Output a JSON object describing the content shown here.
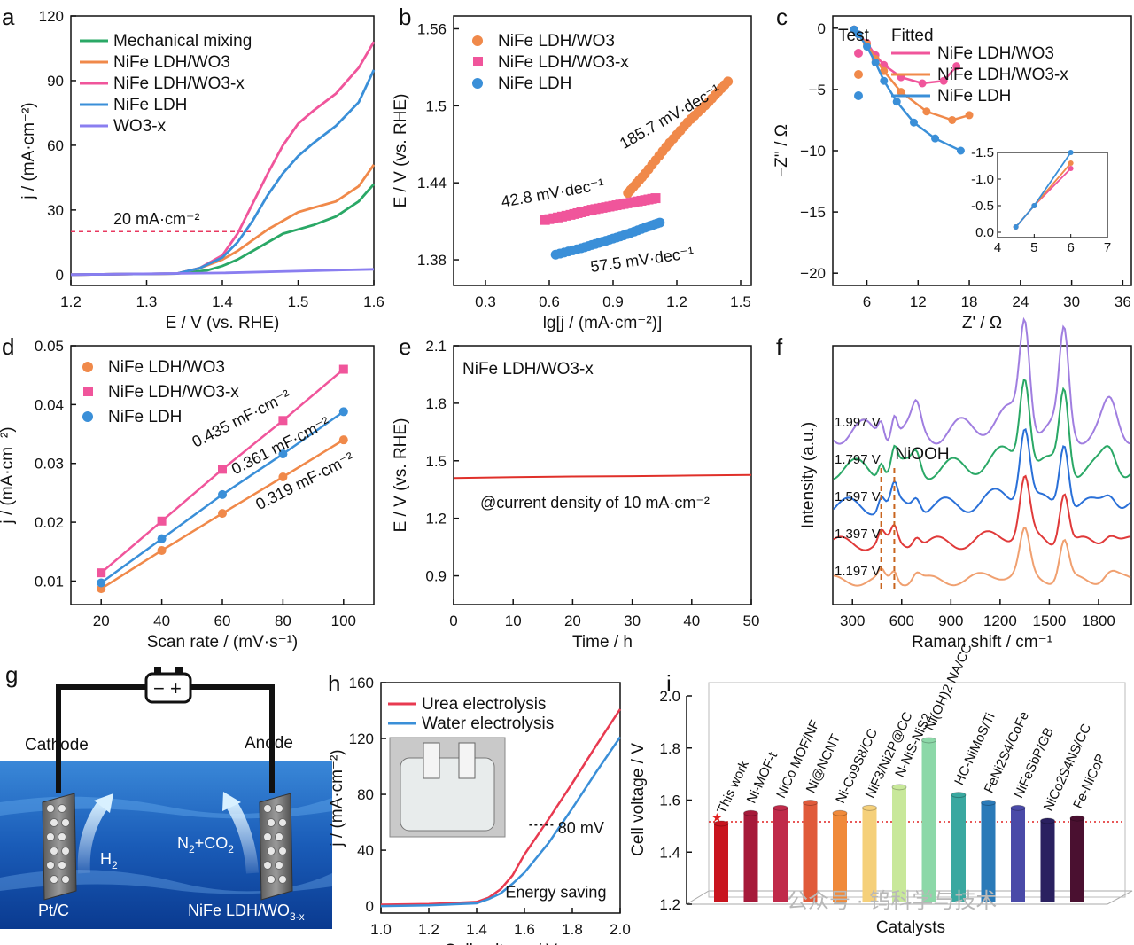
{
  "panels": [
    {
      "id": "a",
      "letter": "a",
      "chart_data": {
        "type": "line",
        "xlabel": "E / V (vs. RHE)",
        "ylabel": "j / (mA·cm⁻²)",
        "xlim": [
          1.2,
          1.6
        ],
        "ylim": [
          -5,
          120
        ],
        "xticks": [
          1.2,
          1.3,
          1.4,
          1.5,
          1.6
        ],
        "yticks": [
          0,
          30,
          60,
          90,
          120
        ],
        "legend_position": "top-left",
        "annotations": [
          {
            "text": "20 mA·cm⁻²",
            "y": 20
          }
        ],
        "series": [
          {
            "name": "Mechanical mixing",
            "color": "#2aa866",
            "x": [
              1.2,
              1.34,
              1.38,
              1.4,
              1.42,
              1.44,
              1.46,
              1.48,
              1.5,
              1.52,
              1.55,
              1.58,
              1.6
            ],
            "y": [
              0,
              0.5,
              2,
              4,
              7,
              11,
              15,
              19,
              21,
              23,
              27,
              34,
              42
            ]
          },
          {
            "name": "NiFe LDH/WO3",
            "color": "#f0894a",
            "x": [
              1.2,
              1.34,
              1.37,
              1.4,
              1.42,
              1.44,
              1.46,
              1.48,
              1.5,
              1.52,
              1.55,
              1.58,
              1.6
            ],
            "y": [
              0,
              0.5,
              3,
              7,
              11,
              16,
              21,
              25,
              29,
              31,
              34,
              41,
              51
            ]
          },
          {
            "name": "NiFe LDH/WO3-x",
            "color": "#f0559b",
            "x": [
              1.2,
              1.34,
              1.37,
              1.4,
              1.42,
              1.44,
              1.46,
              1.48,
              1.5,
              1.52,
              1.55,
              1.58,
              1.6
            ],
            "y": [
              0,
              0.5,
              3,
              9,
              19,
              33,
              47,
              60,
              70,
              76,
              84,
              96,
              108
            ]
          },
          {
            "name": "NiFe LDH",
            "color": "#3a8fd8",
            "x": [
              1.2,
              1.34,
              1.37,
              1.4,
              1.42,
              1.44,
              1.46,
              1.48,
              1.5,
              1.52,
              1.55,
              1.58,
              1.6
            ],
            "y": [
              0,
              0.5,
              3,
              8,
              15,
              25,
              37,
              47,
              55,
              61,
              69,
              80,
              95
            ]
          },
          {
            "name": "WO3-x",
            "color": "#8a7ef0",
            "x": [
              1.2,
              1.4,
              1.6
            ],
            "y": [
              0,
              0.8,
              2.5
            ]
          }
        ]
      }
    },
    {
      "id": "b",
      "letter": "b",
      "chart_data": {
        "type": "scatter",
        "xlabel": "lg[j / (mA·cm⁻²)]",
        "ylabel": "E / V (vs. RHE)",
        "xlim": [
          0.15,
          1.55
        ],
        "ylim": [
          1.36,
          1.57
        ],
        "xticks": [
          0.3,
          0.6,
          0.9,
          1.2,
          1.5
        ],
        "yticks": [
          1.38,
          1.44,
          1.5,
          1.56
        ],
        "legend_position": "top-left",
        "annotations": [
          {
            "text": "185.7 mV·dec⁻¹"
          },
          {
            "text": "42.8 mV·dec⁻¹"
          },
          {
            "text": "57.5 mV·dec⁻¹"
          }
        ],
        "series": [
          {
            "name": "NiFe LDH/WO3",
            "color": "#f0894a",
            "x": [
              0.97,
              1.05,
              1.15,
              1.25,
              1.35,
              1.44
            ],
            "y": [
              1.432,
              1.447,
              1.468,
              1.487,
              1.503,
              1.519
            ]
          },
          {
            "name": "NiFe LDH/WO3-x",
            "color": "#f0559b",
            "x": [
              0.58,
              0.7,
              0.8,
              0.9,
              1.0,
              1.1
            ],
            "y": [
              1.411,
              1.415,
              1.419,
              1.422,
              1.425,
              1.428
            ]
          },
          {
            "name": "NiFe LDH",
            "color": "#3a8fd8",
            "x": [
              0.63,
              0.75,
              0.85,
              0.95,
              1.05,
              1.12
            ],
            "y": [
              1.384,
              1.389,
              1.394,
              1.399,
              1.405,
              1.409
            ]
          }
        ]
      }
    },
    {
      "id": "c",
      "letter": "c",
      "chart_data": {
        "type": "scatter",
        "xlabel": "Z' / Ω",
        "ylabel": "−Z'' / Ω",
        "xlim": [
          2,
          37
        ],
        "ylim": [
          -21,
          1
        ],
        "y_inverted": true,
        "xticks": [
          6,
          12,
          18,
          24,
          30,
          36
        ],
        "yticks": [
          0,
          -5,
          -10,
          -15,
          -20
        ],
        "legend_position": "top-left",
        "legend_headers": [
          "Test",
          "Fitted"
        ],
        "series": [
          {
            "name": "NiFe LDH/WO3",
            "color": "#f0559b",
            "x": [
              4.5,
              5,
              6,
              7,
              8,
              10,
              12.5,
              15,
              16.5
            ],
            "y": [
              -0.1,
              -0.5,
              -1.2,
              -2.2,
              -3,
              -4,
              -4.5,
              -4.3,
              -3.1
            ]
          },
          {
            "name": "NiFe LDH/WO3-x",
            "color": "#f0894a",
            "x": [
              4.5,
              5,
              6,
              7,
              8,
              10,
              13,
              16,
              18
            ],
            "y": [
              -0.1,
              -0.5,
              -1.3,
              -2.5,
              -3.5,
              -5.2,
              -6.8,
              -7.5,
              -7.1
            ]
          },
          {
            "name": "NiFe LDH",
            "color": "#3a8fd8",
            "x": [
              4.5,
              5,
              6,
              7,
              8,
              9.5,
              11.5,
              14,
              17
            ],
            "y": [
              -0.1,
              -0.5,
              -1.5,
              -2.8,
              -4.3,
              -6,
              -7.7,
              -9,
              -10
            ]
          }
        ],
        "inset": {
          "xlim": [
            4,
            7
          ],
          "ylim": [
            -1.5,
            0.1
          ],
          "xticks": [
            4,
            5,
            6,
            7
          ],
          "yticks": [
            -1.5,
            -1.0,
            -0.5,
            0.0
          ],
          "tick_labels_x": [
            "4",
            "5",
            "6",
            "7"
          ],
          "tick_labels_y": [
            "-1.5",
            "-1.0",
            "-0.5",
            "0.0"
          ]
        }
      }
    },
    {
      "id": "d",
      "letter": "d",
      "chart_data": {
        "type": "scatter",
        "xlabel": "Scan rate / (mV·s⁻¹)",
        "ylabel": "j / (mA·cm⁻²)",
        "xlim": [
          10,
          110
        ],
        "ylim": [
          0.006,
          0.05
        ],
        "xticks": [
          20,
          40,
          60,
          80,
          100
        ],
        "yticks": [
          0.01,
          0.02,
          0.03,
          0.04,
          0.05
        ],
        "tick_labels_y": [
          "0.01",
          "0.02",
          "0.03",
          "0.04",
          "0.05"
        ],
        "legend_position": "top-left",
        "annotations": [
          {
            "text": "0.435 mF·cm⁻²"
          },
          {
            "text": "0.361 mF·cm⁻²"
          },
          {
            "text": "0.319 mF·cm⁻²"
          }
        ],
        "series": [
          {
            "name": "NiFe LDH/WO3",
            "color": "#f0894a",
            "x": [
              20,
              40,
              60,
              80,
              100
            ],
            "y": [
              0.0087,
              0.0152,
              0.0215,
              0.0277,
              0.034
            ]
          },
          {
            "name": "NiFe LDH/WO3-x",
            "color": "#f0559b",
            "x": [
              20,
              40,
              60,
              80,
              100
            ],
            "y": [
              0.0114,
              0.0202,
              0.029,
              0.0373,
              0.046
            ]
          },
          {
            "name": "NiFe LDH",
            "color": "#3a8fd8",
            "x": [
              20,
              40,
              60,
              80,
              100
            ],
            "y": [
              0.0097,
              0.0172,
              0.0247,
              0.0316,
              0.0388
            ]
          }
        ]
      }
    },
    {
      "id": "e",
      "letter": "e",
      "chart_data": {
        "type": "line",
        "xlabel": "Time / h",
        "ylabel": "E / V (vs. RHE)",
        "xlim": [
          0,
          50
        ],
        "ylim": [
          0.75,
          2.1
        ],
        "xticks": [
          0,
          10,
          20,
          30,
          40,
          50
        ],
        "yticks": [
          0.9,
          1.2,
          1.5,
          1.8,
          2.1
        ],
        "tick_labels_y": [
          "0.9",
          "1.2",
          "1.5",
          "1.8",
          "2.1"
        ],
        "title": "NiFe LDH/WO3-x",
        "annotations": [
          {
            "text": "@current density of 10 mA·cm⁻²"
          }
        ],
        "series": [
          {
            "name": "",
            "color": "#e0302a",
            "x": [
              0,
              10,
              20,
              30,
              40,
              50
            ],
            "y": [
              1.41,
              1.415,
              1.418,
              1.42,
              1.423,
              1.426
            ]
          }
        ]
      }
    },
    {
      "id": "f",
      "letter": "f",
      "chart_data": {
        "type": "line",
        "xlabel": "Raman shift / cm⁻¹",
        "ylabel": "Intensity (a.u.)",
        "xlim": [
          180,
          2000
        ],
        "xticks": [
          300,
          600,
          900,
          1200,
          1500,
          1800
        ],
        "annotations": [
          {
            "text": "NiOOH"
          }
        ],
        "markers_x": [
          475,
          555
        ],
        "series": [
          {
            "name": "1.997 V",
            "color": "#a07ee0",
            "offset": 4
          },
          {
            "name": "1.797 V",
            "color": "#2aa866",
            "offset": 3
          },
          {
            "name": "1.597 V",
            "color": "#2a70d8",
            "offset": 2
          },
          {
            "name": "1.397 V",
            "color": "#e03a3a",
            "offset": 1
          },
          {
            "name": "1.197 V",
            "color": "#f0a070",
            "offset": 0
          }
        ]
      }
    },
    {
      "id": "h",
      "letter": "h",
      "chart_data": {
        "type": "line",
        "xlabel": "Cell voltage / V",
        "ylabel": "j / (mA·cm⁻²)",
        "xlim": [
          1.0,
          2.0
        ],
        "ylim": [
          -5,
          160
        ],
        "xticks": [
          1.0,
          1.2,
          1.4,
          1.6,
          1.8,
          2.0
        ],
        "yticks": [
          0,
          40,
          80,
          120,
          160
        ],
        "tick_labels_x": [
          "1.0",
          "1.2",
          "1.4",
          "1.6",
          "1.8",
          "2.0"
        ],
        "legend_position": "top-left",
        "annotations": [
          {
            "text": "80 mV"
          },
          {
            "text": "Energy saving"
          }
        ],
        "series": [
          {
            "name": "Urea electrolysis",
            "color": "#e83a50",
            "x": [
              1.0,
              1.2,
              1.4,
              1.45,
              1.5,
              1.55,
              1.6,
              1.7,
              1.8,
              1.9,
              2.0
            ],
            "y": [
              1,
              1.5,
              3,
              6,
              12,
              22,
              37,
              62,
              88,
              115,
              141
            ]
          },
          {
            "name": "Water electrolysis",
            "color": "#3a8fd8",
            "x": [
              1.0,
              1.2,
              1.4,
              1.45,
              1.5,
              1.55,
              1.6,
              1.7,
              1.8,
              1.9,
              2.0
            ],
            "y": [
              0,
              0.5,
              2,
              5,
              9,
              16,
              24,
              45,
              70,
              96,
              121
            ]
          }
        ]
      }
    },
    {
      "id": "i",
      "letter": "i",
      "chart_data": {
        "type": "bar",
        "xlabel": "Catalysts",
        "ylabel": "Cell voltage / V",
        "ylim": [
          1.2,
          2.0
        ],
        "yticks": [
          1.2,
          1.4,
          1.6,
          1.8,
          2.0
        ],
        "tick_labels_y": [
          "1.2",
          "1.4",
          "1.6",
          "1.8",
          "2.0"
        ],
        "reference_line": 1.51,
        "categories": [
          "This work",
          "Ni-MOF-t",
          "NiCo MOF/NF",
          "Ni@NCNT",
          "Ni-Co9S8/CC",
          "NiF3/Ni2P@CC",
          "N-NiS-NiS2",
          "Ni(OH)2 NA/CC",
          "HC-NiMoS/Ti",
          "FeNi2S4/CoFe",
          "NiFeSbP/GB",
          "NiCo2S4NS/CC",
          "Fe-NiCoP"
        ],
        "values": [
          1.51,
          1.55,
          1.57,
          1.59,
          1.55,
          1.57,
          1.65,
          1.83,
          1.62,
          1.59,
          1.57,
          1.52,
          1.53
        ],
        "colors": [
          "#c8141e",
          "#a61a3a",
          "#c02a4a",
          "#e05a3a",
          "#f08a3a",
          "#f5d07a",
          "#c8e89a",
          "#8cd8a8",
          "#3aa8a0",
          "#2a7ab8",
          "#4a4aa8",
          "#2a2060",
          "#4a1030"
        ]
      }
    }
  ],
  "g": {
    "letter": "g",
    "cathode": "Cathode",
    "anode": "Anode",
    "battery_minus": "−",
    "battery_plus": "+",
    "h2": "H",
    "h2_sub": "2",
    "n2co2_a": "N",
    "n2co2_b": "2",
    "n2co2_c": "+CO",
    "n2co2_d": "2",
    "ptc": "Pt/C",
    "nife": "NiFe LDH/WO",
    "nife_sub": "3-x"
  },
  "watermark": "公众号 · 钨科学与技术"
}
